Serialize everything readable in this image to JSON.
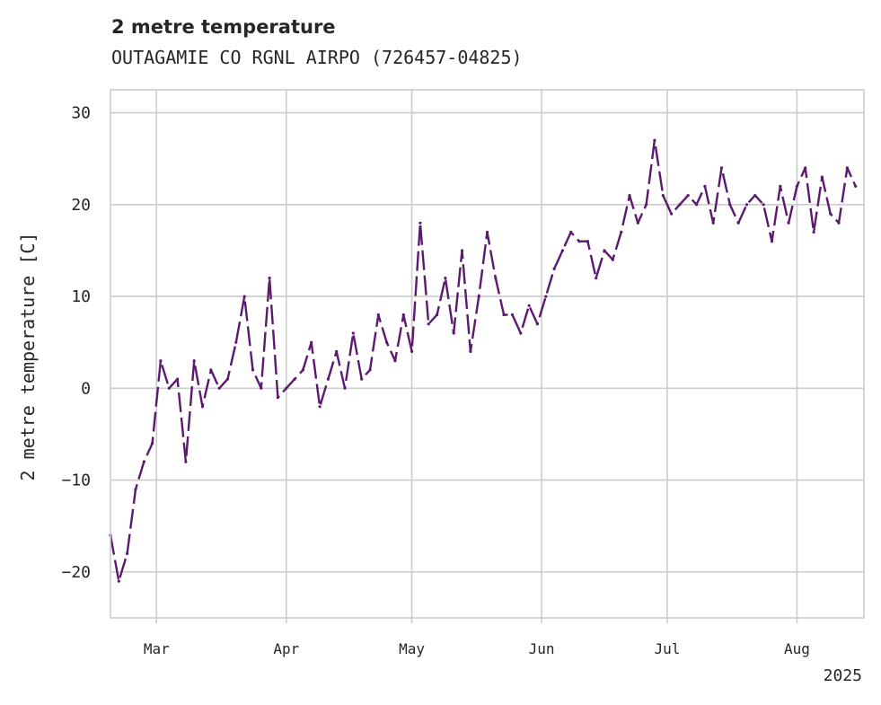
{
  "chart_data": {
    "type": "line",
    "title": "2 metre temperature",
    "subtitle": "OUTAGAMIE CO RGNL AIRPO (726457-04825)",
    "xlabel": "",
    "ylabel": "2 metre temperature [C]",
    "ylim": [
      -25,
      32.5
    ],
    "xlim": [
      "2025-02-18",
      "2025-08-17"
    ],
    "yticks": [
      -20,
      -10,
      0,
      10,
      20,
      30
    ],
    "ytick_labels": [
      "−20",
      "−10",
      "0",
      "10",
      "20",
      "30"
    ],
    "xticks": [
      {
        "date": "2025-03-01",
        "label": "Mar"
      },
      {
        "date": "2025-04-01",
        "label": "Apr"
      },
      {
        "date": "2025-05-01",
        "label": "May"
      },
      {
        "date": "2025-06-01",
        "label": "Jun"
      },
      {
        "date": "2025-07-01",
        "label": "Jul"
      },
      {
        "date": "2025-08-01",
        "label": "Aug"
      }
    ],
    "year_label": "2025",
    "grid": true,
    "line_color": "#5b1a6e",
    "x": [
      "2025-02-18",
      "2025-02-20",
      "2025-02-22",
      "2025-02-24",
      "2025-02-26",
      "2025-02-28",
      "2025-03-02",
      "2025-03-04",
      "2025-03-06",
      "2025-03-08",
      "2025-03-10",
      "2025-03-12",
      "2025-03-14",
      "2025-03-16",
      "2025-03-18",
      "2025-03-20",
      "2025-03-22",
      "2025-03-24",
      "2025-03-26",
      "2025-03-28",
      "2025-03-30",
      "2025-04-01",
      "2025-04-03",
      "2025-04-05",
      "2025-04-07",
      "2025-04-09",
      "2025-04-11",
      "2025-04-13",
      "2025-04-15",
      "2025-04-17",
      "2025-04-19",
      "2025-04-21",
      "2025-04-23",
      "2025-04-25",
      "2025-04-27",
      "2025-04-29",
      "2025-05-01",
      "2025-05-03",
      "2025-05-05",
      "2025-05-07",
      "2025-05-09",
      "2025-05-11",
      "2025-05-13",
      "2025-05-15",
      "2025-05-17",
      "2025-05-19",
      "2025-05-21",
      "2025-05-23",
      "2025-05-25",
      "2025-05-27",
      "2025-05-29",
      "2025-05-31",
      "2025-06-02",
      "2025-06-04",
      "2025-06-06",
      "2025-06-08",
      "2025-06-10",
      "2025-06-12",
      "2025-06-14",
      "2025-06-16",
      "2025-06-18",
      "2025-06-20",
      "2025-06-22",
      "2025-06-24",
      "2025-06-26",
      "2025-06-28",
      "2025-06-30",
      "2025-07-02",
      "2025-07-04",
      "2025-07-06",
      "2025-07-08",
      "2025-07-10",
      "2025-07-12",
      "2025-07-14",
      "2025-07-16",
      "2025-07-18",
      "2025-07-20",
      "2025-07-22",
      "2025-07-24",
      "2025-07-26",
      "2025-07-28",
      "2025-07-30",
      "2025-08-01",
      "2025-08-03",
      "2025-08-05",
      "2025-08-07",
      "2025-08-09",
      "2025-08-11",
      "2025-08-13",
      "2025-08-15"
    ],
    "series": [
      {
        "values": [
          -16,
          -21,
          -18,
          -11,
          -8,
          -6,
          3,
          0,
          1,
          -8,
          3,
          -2,
          2,
          0,
          1,
          5,
          10,
          2,
          0,
          12,
          -1,
          0,
          1,
          2,
          5,
          -2,
          1,
          4,
          0,
          6,
          1,
          2,
          8,
          5,
          3,
          8,
          4,
          18,
          7,
          8,
          12,
          6,
          15,
          4,
          10,
          17,
          12,
          8,
          8,
          6,
          9,
          7,
          10,
          13,
          15,
          17,
          16,
          16,
          12,
          15,
          14,
          17,
          21,
          18,
          20,
          27,
          21,
          19,
          20,
          21,
          20,
          22,
          18,
          24,
          20,
          18,
          20,
          21,
          20,
          16,
          22,
          18,
          22,
          24,
          17,
          23,
          19,
          18,
          24,
          22
        ]
      }
    ]
  }
}
